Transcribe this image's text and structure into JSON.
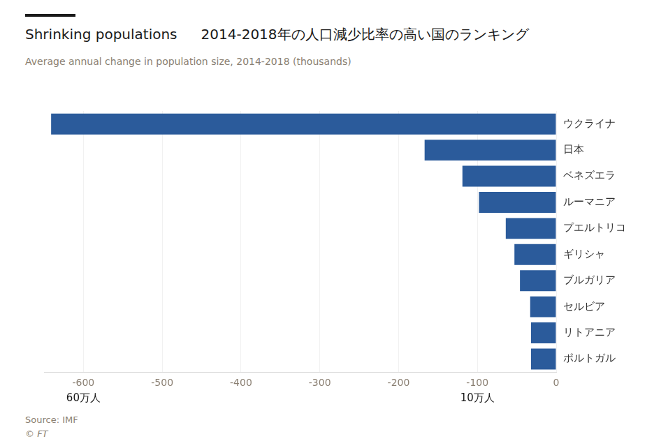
{
  "chart_data": {
    "type": "bar",
    "orientation": "horizontal",
    "title": [
      "Shrinking populations",
      "2014-2018年の人口減少比率の高い国のランキング"
    ],
    "subtitle": "Average annual change in population size, 2014-2018 (thousands)",
    "source": "Source: IMF",
    "credit": "© FT",
    "categories": [
      "ウクライナ",
      "日本",
      "ベネズエラ",
      "ルーマニア",
      "プエルトリコ",
      "ギリシャ",
      "ブルガリア",
      "セルビア",
      "リトアニア",
      "ポルトガル"
    ],
    "values": [
      -641,
      -167,
      -119,
      -98,
      -64,
      -53,
      -46,
      -33,
      -32,
      -32
    ],
    "color": "#2b5b9b",
    "xlim": [
      -650,
      0
    ],
    "xticks": [
      -600,
      -500,
      -400,
      -300,
      -200,
      -100,
      0
    ],
    "grid": true,
    "annotations": [
      {
        "text": "60万人",
        "x": -600
      },
      {
        "text": "10万人",
        "x": -100
      }
    ]
  }
}
